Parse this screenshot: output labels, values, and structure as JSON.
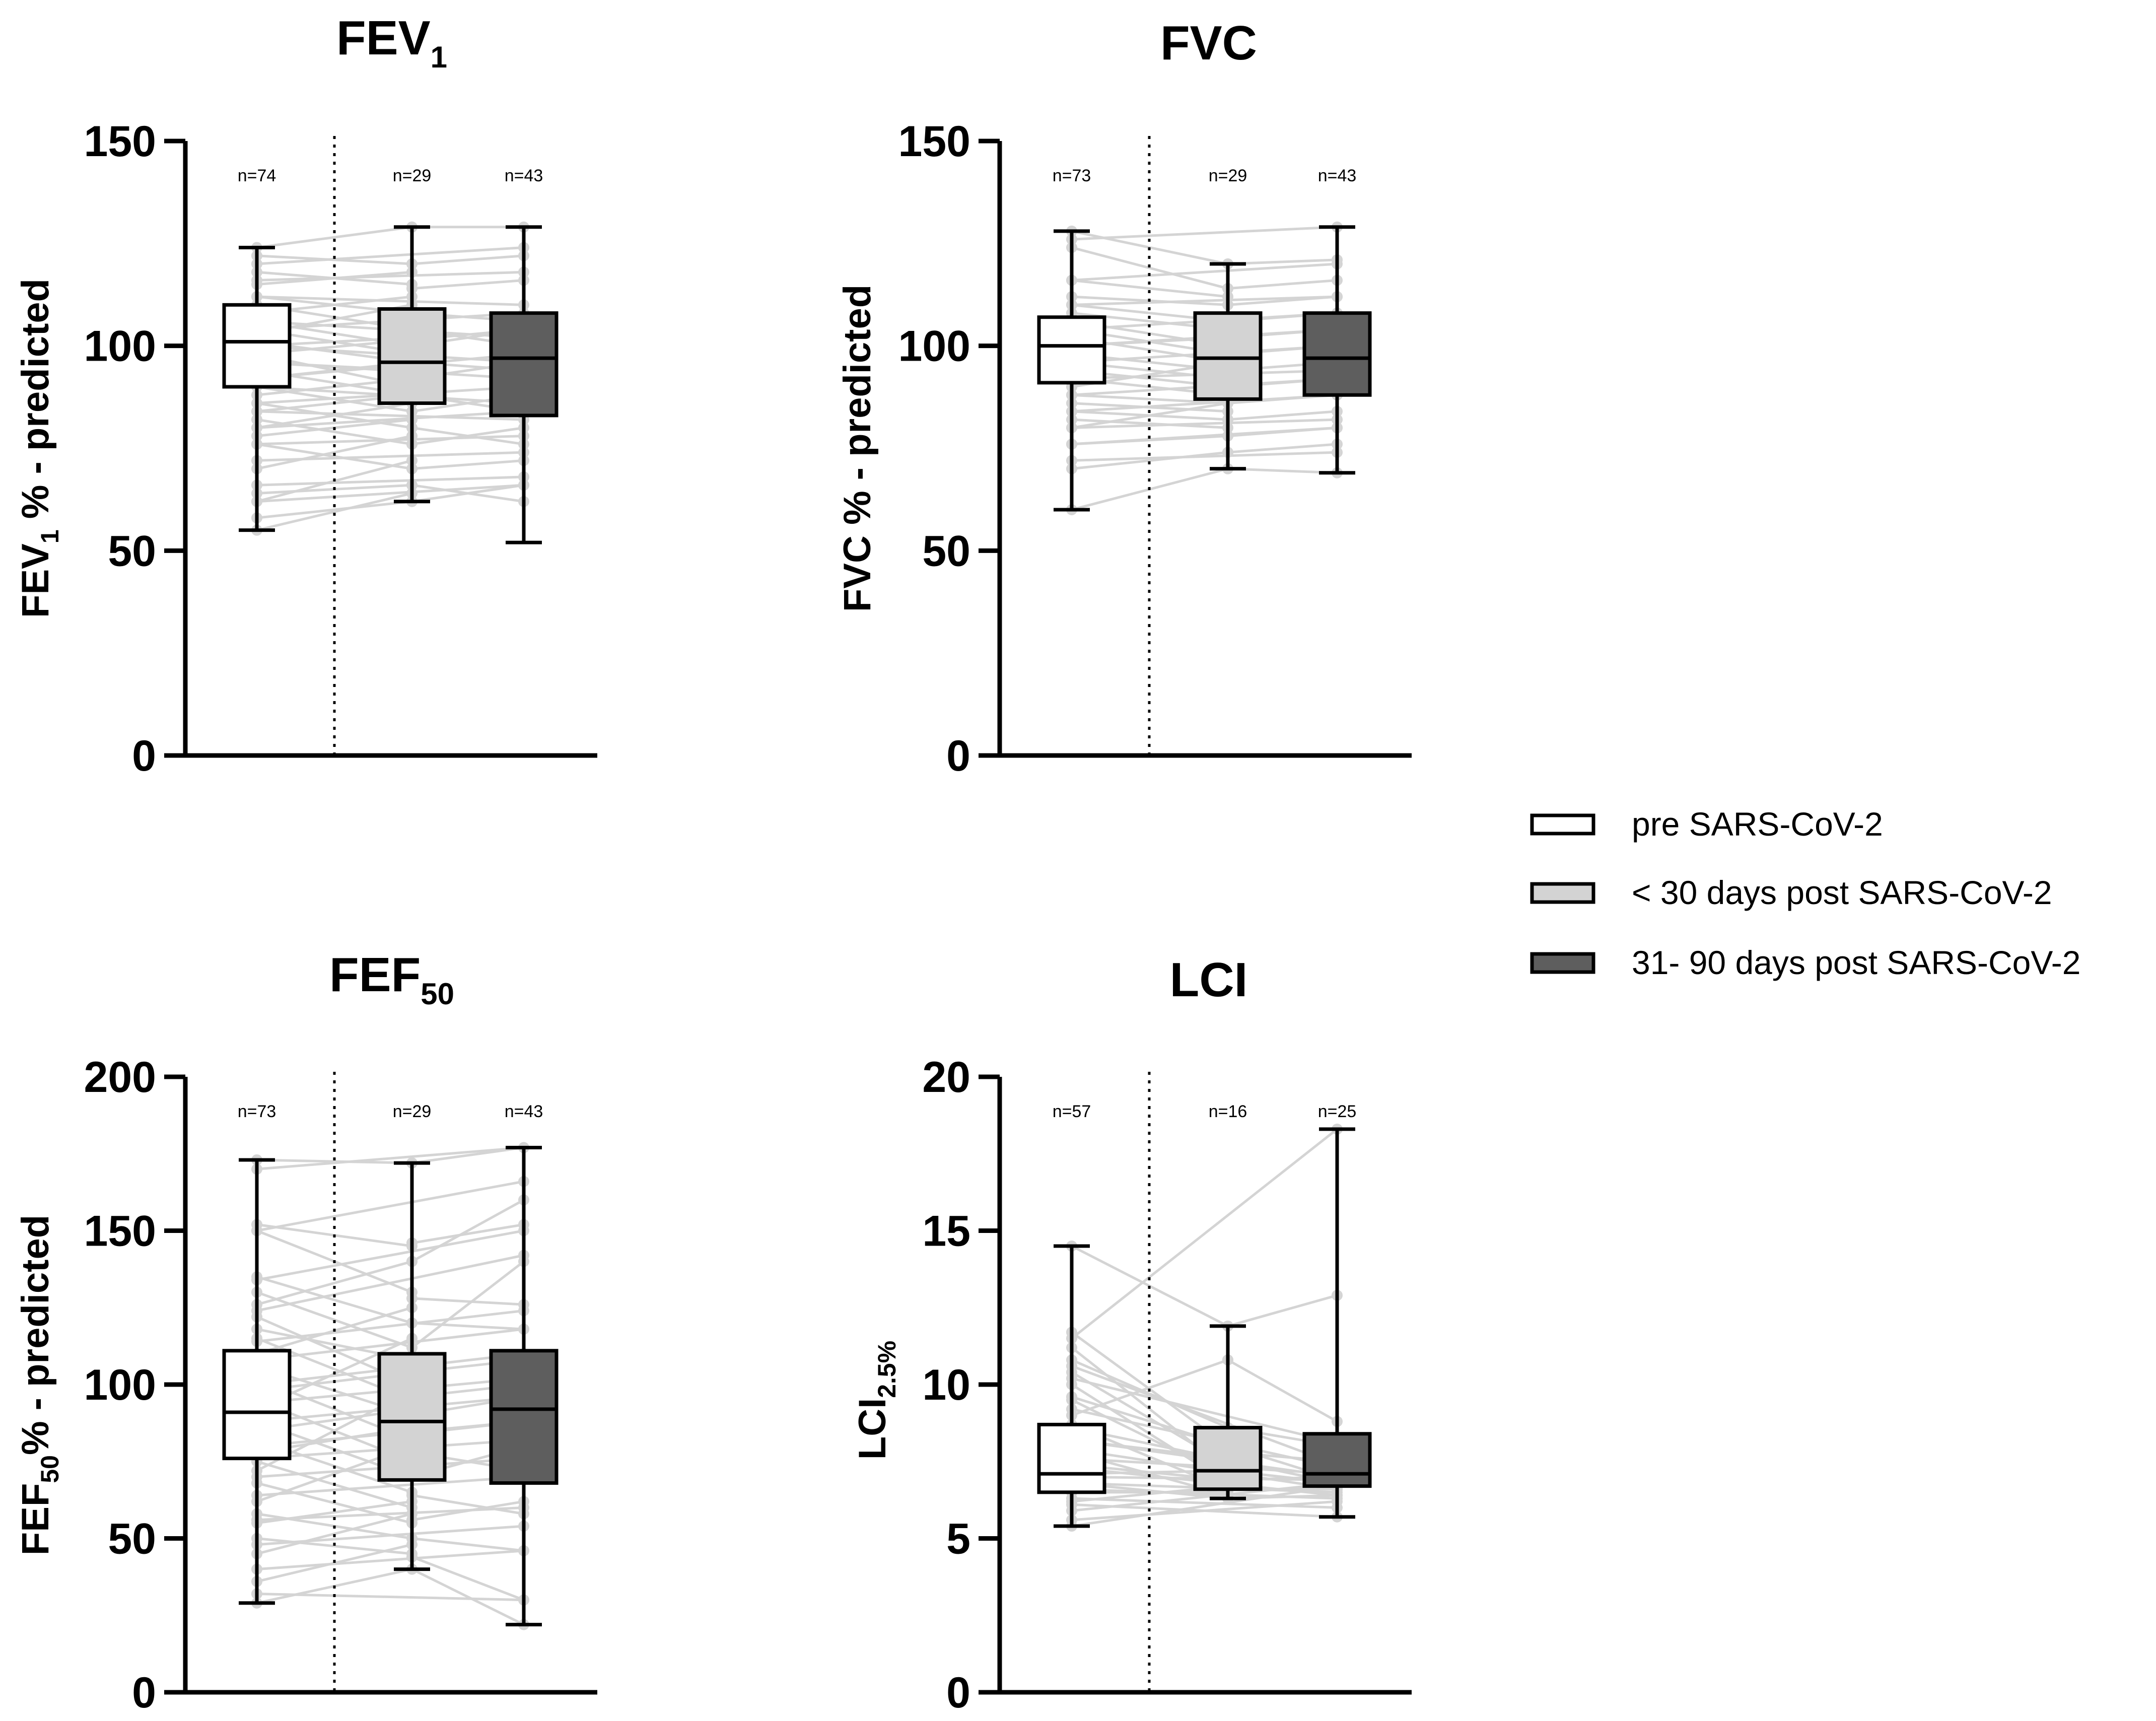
{
  "colors": {
    "pre": "#ffffff",
    "post30": "#d3d3d3",
    "post90": "#5e5e5e",
    "lines": "#d4d4d4",
    "axis": "#000000"
  },
  "legend": {
    "items": [
      {
        "label": "pre SARS-CoV-2",
        "color": "#ffffff"
      },
      {
        "label": " < 30 days post SARS-CoV-2",
        "color": "#d3d3d3"
      },
      {
        "label": "31- 90 days post SARS-CoV-2",
        "color": "#5e5e5e"
      }
    ]
  },
  "chart_data": [
    {
      "id": "fev1",
      "type": "box",
      "title": {
        "main": "FEV",
        "sub": "1"
      },
      "ylabel": {
        "pre": "FEV",
        "sub": "1",
        "post": " % - predicted"
      },
      "ylim": [
        0,
        150
      ],
      "yticks": [
        "0",
        "50",
        "100",
        "150"
      ],
      "groups": [
        {
          "name": "pre SARS-CoV-2",
          "n": "n=74",
          "min": 55,
          "q1": 90,
          "median": 101,
          "q3": 110,
          "max": 124
        },
        {
          "name": "< 30 days post SARS-CoV-2",
          "n": "n=29",
          "min": 62,
          "q1": 86,
          "median": 96,
          "q3": 109,
          "max": 129
        },
        {
          "name": "31- 90 days post SARS-CoV-2",
          "n": "n=43",
          "min": 52,
          "q1": 83,
          "median": 97,
          "q3": 108,
          "max": 129
        }
      ],
      "paired_pre_lt30": [
        [
          124,
          129
        ],
        [
          122,
          120
        ],
        [
          118,
          115
        ],
        [
          115,
          118
        ],
        [
          112,
          108
        ],
        [
          110,
          104
        ],
        [
          108,
          112
        ],
        [
          106,
          100
        ],
        [
          104,
          98
        ],
        [
          103,
          110
        ],
        [
          101,
          96
        ],
        [
          100,
          102
        ],
        [
          98,
          90
        ],
        [
          96,
          94
        ],
        [
          94,
          88
        ],
        [
          92,
          96
        ],
        [
          90,
          84
        ],
        [
          88,
          92
        ],
        [
          86,
          80
        ],
        [
          84,
          88
        ],
        [
          82,
          76
        ],
        [
          80,
          86
        ],
        [
          78,
          82
        ],
        [
          76,
          70
        ],
        [
          70,
          78
        ],
        [
          64,
          66
        ],
        [
          62,
          72
        ],
        [
          58,
          62
        ],
        [
          55,
          64
        ]
      ],
      "paired_pre_31_90": [
        [
          120,
          124
        ],
        [
          116,
          118
        ],
        [
          112,
          110
        ],
        [
          106,
          102
        ],
        [
          104,
          108
        ],
        [
          100,
          96
        ],
        [
          98,
          104
        ],
        [
          96,
          92
        ],
        [
          92,
          98
        ],
        [
          90,
          86
        ],
        [
          86,
          90
        ],
        [
          84,
          82
        ],
        [
          80,
          84
        ],
        [
          76,
          78
        ],
        [
          72,
          74
        ],
        [
          66,
          68
        ],
        [
          62,
          66
        ]
      ],
      "paired_lt30_31_90": [
        [
          129,
          129
        ],
        [
          120,
          122
        ],
        [
          114,
          116
        ],
        [
          108,
          106
        ],
        [
          104,
          100
        ],
        [
          100,
          104
        ],
        [
          96,
          94
        ],
        [
          92,
          96
        ],
        [
          88,
          84
        ],
        [
          84,
          88
        ],
        [
          80,
          76
        ],
        [
          76,
          80
        ],
        [
          70,
          72
        ],
        [
          66,
          62
        ],
        [
          62,
          66
        ]
      ]
    },
    {
      "id": "fvc",
      "type": "box",
      "title": {
        "main": "FVC",
        "sub": ""
      },
      "ylabel": {
        "pre": "FVC % - predicted",
        "sub": "",
        "post": ""
      },
      "ylim": [
        0,
        150
      ],
      "yticks": [
        "0",
        "50",
        "100",
        "150"
      ],
      "groups": [
        {
          "name": "pre SARS-CoV-2",
          "n": "n=73",
          "min": 60,
          "q1": 91,
          "median": 100,
          "q3": 107,
          "max": 128
        },
        {
          "name": "< 30 days post SARS-CoV-2",
          "n": "n=29",
          "min": 70,
          "q1": 87,
          "median": 97,
          "q3": 108,
          "max": 120
        },
        {
          "name": "31- 90 days post SARS-CoV-2",
          "n": "n=43",
          "min": 69,
          "q1": 88,
          "median": 97,
          "q3": 108,
          "max": 129
        }
      ],
      "paired_pre_lt30": [
        [
          128,
          120
        ],
        [
          124,
          114
        ],
        [
          116,
          112
        ],
        [
          112,
          110
        ],
        [
          110,
          106
        ],
        [
          108,
          104
        ],
        [
          106,
          100
        ],
        [
          104,
          98
        ],
        [
          102,
          96
        ],
        [
          100,
          102
        ],
        [
          98,
          94
        ],
        [
          96,
          92
        ],
        [
          94,
          90
        ],
        [
          92,
          88
        ],
        [
          90,
          96
        ],
        [
          88,
          86
        ],
        [
          86,
          84
        ],
        [
          84,
          82
        ],
        [
          82,
          80
        ],
        [
          80,
          86
        ],
        [
          76,
          78
        ],
        [
          70,
          74
        ],
        [
          60,
          70
        ]
      ],
      "paired_pre_31_90": [
        [
          126,
          129
        ],
        [
          116,
          120
        ],
        [
          110,
          112
        ],
        [
          104,
          108
        ],
        [
          100,
          104
        ],
        [
          96,
          100
        ],
        [
          92,
          94
        ],
        [
          88,
          92
        ],
        [
          84,
          88
        ],
        [
          80,
          82
        ],
        [
          76,
          80
        ],
        [
          72,
          74
        ]
      ],
      "paired_lt30_31_90": [
        [
          120,
          121
        ],
        [
          114,
          116
        ],
        [
          110,
          112
        ],
        [
          106,
          108
        ],
        [
          102,
          104
        ],
        [
          98,
          100
        ],
        [
          94,
          96
        ],
        [
          90,
          92
        ],
        [
          86,
          88
        ],
        [
          82,
          84
        ],
        [
          78,
          80
        ],
        [
          74,
          76
        ],
        [
          70,
          69
        ]
      ]
    },
    {
      "id": "fef50",
      "type": "box",
      "title": {
        "main": "FEF",
        "sub": "50"
      },
      "ylabel": {
        "pre": "FEF",
        "sub": "50",
        "post": "% - predicted"
      },
      "ylim": [
        0,
        200
      ],
      "yticks": [
        "0",
        "50",
        "100",
        "150",
        "200"
      ],
      "groups": [
        {
          "name": "pre SARS-CoV-2",
          "n": "n=73",
          "min": 29,
          "q1": 76,
          "median": 91,
          "q3": 111,
          "max": 173
        },
        {
          "name": "< 30 days post SARS-CoV-2",
          "n": "n=29",
          "min": 40,
          "q1": 69,
          "median": 88,
          "q3": 110,
          "max": 172
        },
        {
          "name": "31- 90 days post SARS-CoV-2",
          "n": "n=43",
          "min": 22,
          "q1": 68,
          "median": 92,
          "q3": 111,
          "max": 177
        }
      ],
      "paired_pre_lt30": [
        [
          173,
          172
        ],
        [
          152,
          145
        ],
        [
          150,
          130
        ],
        [
          135,
          120
        ],
        [
          130,
          112
        ],
        [
          126,
          140
        ],
        [
          122,
          100
        ],
        [
          118,
          108
        ],
        [
          115,
          95
        ],
        [
          110,
          125
        ],
        [
          106,
          90
        ],
        [
          102,
          82
        ],
        [
          98,
          104
        ],
        [
          95,
          75
        ],
        [
          92,
          115
        ],
        [
          88,
          70
        ],
        [
          85,
          92
        ],
        [
          82,
          65
        ],
        [
          78,
          86
        ],
        [
          75,
          60
        ],
        [
          72,
          98
        ],
        [
          68,
          55
        ],
        [
          62,
          80
        ],
        [
          58,
          50
        ],
        [
          55,
          62
        ],
        [
          50,
          45
        ],
        [
          45,
          58
        ],
        [
          36,
          48
        ],
        [
          29,
          40
        ]
      ],
      "paired_pre_31_90": [
        [
          170,
          177
        ],
        [
          150,
          166
        ],
        [
          134,
          150
        ],
        [
          124,
          142
        ],
        [
          114,
          124
        ],
        [
          108,
          118
        ],
        [
          100,
          110
        ],
        [
          94,
          102
        ],
        [
          88,
          96
        ],
        [
          80,
          88
        ],
        [
          76,
          82
        ],
        [
          70,
          76
        ],
        [
          64,
          70
        ],
        [
          56,
          60
        ],
        [
          48,
          54
        ],
        [
          40,
          46
        ],
        [
          32,
          30
        ]
      ],
      "paired_lt30_31_90": [
        [
          172,
          177
        ],
        [
          146,
          152
        ],
        [
          140,
          160
        ],
        [
          128,
          126
        ],
        [
          120,
          118
        ],
        [
          112,
          140
        ],
        [
          104,
          108
        ],
        [
          96,
          100
        ],
        [
          90,
          96
        ],
        [
          84,
          88
        ],
        [
          78,
          72
        ],
        [
          70,
          80
        ],
        [
          64,
          58
        ],
        [
          56,
          62
        ],
        [
          50,
          46
        ],
        [
          44,
          30
        ],
        [
          40,
          22
        ]
      ]
    },
    {
      "id": "lci",
      "type": "box",
      "title": {
        "main": "LCI",
        "sub": ""
      },
      "ylabel": {
        "pre": "LCI",
        "sub": "2.5%",
        "post": ""
      },
      "ylim": [
        0,
        20
      ],
      "yticks": [
        "0",
        "5",
        "10",
        "15",
        "20"
      ],
      "groups": [
        {
          "name": "pre SARS-CoV-2",
          "n": "n=57",
          "min": 5.4,
          "q1": 6.5,
          "median": 7.1,
          "q3": 8.7,
          "max": 14.5
        },
        {
          "name": "< 30 days post SARS-CoV-2",
          "n": "n=16",
          "min": 6.3,
          "q1": 6.6,
          "median": 7.2,
          "q3": 8.6,
          "max": 11.9
        },
        {
          "name": "31- 90 days post SARS-CoV-2",
          "n": "n=25",
          "min": 5.7,
          "q1": 6.7,
          "median": 7.1,
          "q3": 8.4,
          "max": 18.3
        }
      ],
      "paired_pre_lt30": [
        [
          14.5,
          11.9
        ],
        [
          11.7,
          8.0
        ],
        [
          11.2,
          7.2
        ],
        [
          10.8,
          8.6
        ],
        [
          10.4,
          7.4
        ],
        [
          10.0,
          6.8
        ],
        [
          9.5,
          7.0
        ],
        [
          9.0,
          10.8
        ],
        [
          8.7,
          6.6
        ],
        [
          8.2,
          7.6
        ],
        [
          7.8,
          6.4
        ],
        [
          7.4,
          6.9
        ],
        [
          7.1,
          7.2
        ],
        [
          6.8,
          6.3
        ],
        [
          6.5,
          6.5
        ],
        [
          6.2,
          6.7
        ]
      ],
      "paired_pre_31_90": [
        [
          11.5,
          18.3
        ],
        [
          10.6,
          7.4
        ],
        [
          10.2,
          8.1
        ],
        [
          9.6,
          6.9
        ],
        [
          9.2,
          7.3
        ],
        [
          8.6,
          6.8
        ],
        [
          8.2,
          7.0
        ],
        [
          7.9,
          6.6
        ],
        [
          7.6,
          7.1
        ],
        [
          7.3,
          6.4
        ],
        [
          7.0,
          6.9
        ],
        [
          6.8,
          6.5
        ],
        [
          6.6,
          6.3
        ],
        [
          6.3,
          6.0
        ],
        [
          6.1,
          5.7
        ],
        [
          5.9,
          6.8
        ],
        [
          5.6,
          6.2
        ],
        [
          5.4,
          6.7
        ]
      ],
      "paired_lt30_31_90": [
        [
          11.9,
          12.9
        ],
        [
          10.8,
          8.8
        ],
        [
          8.6,
          8.0
        ],
        [
          7.8,
          7.5
        ],
        [
          7.2,
          6.8
        ],
        [
          6.9,
          7.0
        ],
        [
          6.6,
          6.6
        ],
        [
          6.3,
          6.4
        ]
      ]
    }
  ]
}
